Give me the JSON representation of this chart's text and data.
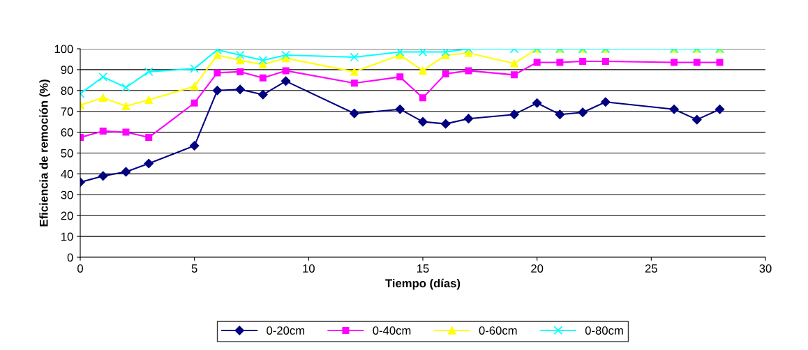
{
  "chart_data": {
    "type": "line",
    "xlabel": "Tiempo (días)",
    "ylabel": "Eficiencia de remoción (%)",
    "x": [
      0,
      1,
      2,
      3,
      5,
      6,
      7,
      8,
      9,
      12,
      14,
      15,
      16,
      17,
      19,
      20,
      21,
      22,
      23,
      26,
      27,
      28
    ],
    "series": [
      {
        "name": "0-20cm",
        "color": "#000080",
        "marker": "diamond",
        "values": [
          36,
          39,
          41,
          45,
          53.5,
          80,
          80.5,
          78,
          84.5,
          69,
          71,
          65,
          64,
          66.5,
          68.5,
          74,
          68.5,
          69.5,
          74.5,
          71,
          66,
          71
        ]
      },
      {
        "name": "0-40cm",
        "color": "#ff00ff",
        "marker": "square",
        "values": [
          57.5,
          60.5,
          60,
          57.5,
          74,
          88.5,
          89,
          86,
          89.5,
          83.5,
          86.5,
          76.5,
          88,
          89.5,
          87.5,
          93.5,
          93.5,
          94,
          94,
          93.5,
          93.5,
          93.5
        ]
      },
      {
        "name": "0-60cm",
        "color": "#ffff00",
        "marker": "triangle",
        "values": [
          73,
          76.5,
          72.5,
          75.5,
          82,
          97,
          94.5,
          92.5,
          95.5,
          89,
          97,
          89.5,
          97,
          98,
          93,
          100,
          100,
          100,
          100,
          100,
          100,
          100
        ]
      },
      {
        "name": "0-80cm",
        "color": "#00ffff",
        "marker": "cross",
        "values": [
          78.5,
          86.5,
          81.5,
          89,
          90.5,
          99.5,
          97,
          94.5,
          97,
          96,
          98.5,
          98.5,
          98.5,
          100,
          100,
          100,
          100,
          100,
          100,
          100,
          100,
          100
        ]
      }
    ],
    "xlim": [
      0,
      30
    ],
    "xticks": [
      0,
      5,
      10,
      15,
      20,
      25,
      30
    ],
    "ylim": [
      0,
      100
    ],
    "yticks": [
      0,
      10,
      20,
      30,
      40,
      50,
      60,
      70,
      80,
      90,
      100
    ],
    "grid": "y",
    "legend": "bottom",
    "line_style": "solid"
  }
}
